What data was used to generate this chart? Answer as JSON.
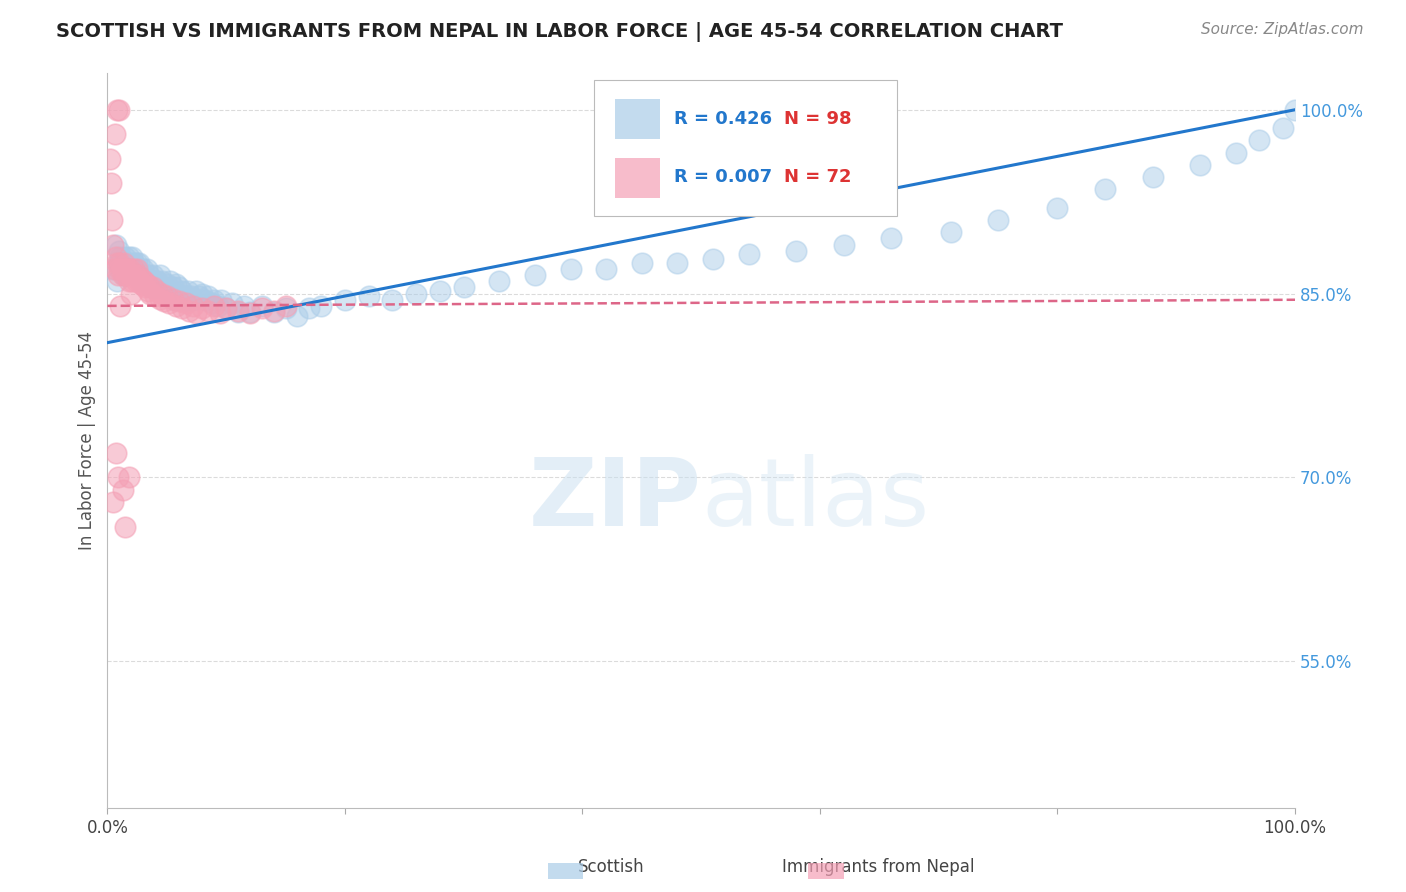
{
  "title": "SCOTTISH VS IMMIGRANTS FROM NEPAL IN LABOR FORCE | AGE 45-54 CORRELATION CHART",
  "source": "Source: ZipAtlas.com",
  "ylabel": "In Labor Force | Age 45-54",
  "xlim": [
    0.0,
    1.0
  ],
  "ylim": [
    0.43,
    1.03
  ],
  "legend_R_blue": "R = 0.426",
  "legend_N_blue": "N = 98",
  "legend_R_pink": "R = 0.007",
  "legend_N_pink": "N = 72",
  "blue_color": "#aacce8",
  "pink_color": "#f4a0b5",
  "blue_line_color": "#2277cc",
  "pink_line_color": "#dd6688",
  "background_color": "#ffffff",
  "grid_color": "#cccccc",
  "title_color": "#222222",
  "source_color": "#888888",
  "watermark_color": "#ddeeff",
  "blue_scatter_x": [
    0.005,
    0.007,
    0.008,
    0.01,
    0.01,
    0.011,
    0.012,
    0.013,
    0.014,
    0.015,
    0.016,
    0.017,
    0.018,
    0.019,
    0.02,
    0.021,
    0.022,
    0.023,
    0.025,
    0.026,
    0.027,
    0.028,
    0.03,
    0.031,
    0.032,
    0.033,
    0.035,
    0.036,
    0.037,
    0.038,
    0.04,
    0.041,
    0.042,
    0.044,
    0.045,
    0.046,
    0.048,
    0.05,
    0.052,
    0.053,
    0.055,
    0.057,
    0.058,
    0.06,
    0.062,
    0.063,
    0.065,
    0.067,
    0.068,
    0.07,
    0.072,
    0.075,
    0.077,
    0.08,
    0.082,
    0.085,
    0.088,
    0.09,
    0.093,
    0.096,
    0.1,
    0.105,
    0.11,
    0.115,
    0.12,
    0.13,
    0.14,
    0.15,
    0.16,
    0.17,
    0.18,
    0.2,
    0.22,
    0.24,
    0.26,
    0.28,
    0.3,
    0.33,
    0.36,
    0.39,
    0.42,
    0.45,
    0.48,
    0.51,
    0.54,
    0.58,
    0.62,
    0.66,
    0.71,
    0.75,
    0.8,
    0.84,
    0.88,
    0.92,
    0.95,
    0.97,
    0.99,
    1.0
  ],
  "blue_scatter_y": [
    0.87,
    0.89,
    0.86,
    0.885,
    0.875,
    0.88,
    0.87,
    0.875,
    0.865,
    0.88,
    0.875,
    0.87,
    0.88,
    0.875,
    0.87,
    0.88,
    0.875,
    0.87,
    0.875,
    0.87,
    0.875,
    0.86,
    0.87,
    0.865,
    0.86,
    0.87,
    0.865,
    0.86,
    0.855,
    0.865,
    0.86,
    0.855,
    0.86,
    0.865,
    0.855,
    0.86,
    0.855,
    0.858,
    0.852,
    0.86,
    0.855,
    0.845,
    0.858,
    0.855,
    0.848,
    0.852,
    0.848,
    0.845,
    0.852,
    0.848,
    0.845,
    0.852,
    0.848,
    0.85,
    0.845,
    0.848,
    0.842,
    0.845,
    0.84,
    0.845,
    0.838,
    0.842,
    0.835,
    0.84,
    0.835,
    0.84,
    0.835,
    0.838,
    0.832,
    0.838,
    0.84,
    0.845,
    0.848,
    0.845,
    0.85,
    0.852,
    0.855,
    0.86,
    0.865,
    0.87,
    0.87,
    0.875,
    0.875,
    0.878,
    0.882,
    0.885,
    0.89,
    0.895,
    0.9,
    0.91,
    0.92,
    0.935,
    0.945,
    0.955,
    0.965,
    0.975,
    0.985,
    1.0
  ],
  "pink_scatter_x": [
    0.002,
    0.003,
    0.004,
    0.005,
    0.006,
    0.007,
    0.008,
    0.009,
    0.01,
    0.011,
    0.012,
    0.013,
    0.014,
    0.015,
    0.016,
    0.017,
    0.018,
    0.019,
    0.02,
    0.021,
    0.022,
    0.023,
    0.024,
    0.025,
    0.026,
    0.027,
    0.028,
    0.029,
    0.03,
    0.031,
    0.032,
    0.033,
    0.034,
    0.035,
    0.036,
    0.038,
    0.04,
    0.042,
    0.044,
    0.046,
    0.048,
    0.05,
    0.052,
    0.055,
    0.058,
    0.06,
    0.063,
    0.066,
    0.069,
    0.072,
    0.075,
    0.08,
    0.085,
    0.09,
    0.095,
    0.1,
    0.11,
    0.12,
    0.13,
    0.14,
    0.15,
    0.01,
    0.008,
    0.006,
    0.005,
    0.007,
    0.009,
    0.011,
    0.013,
    0.015,
    0.018,
    0.02
  ],
  "pink_scatter_y": [
    0.96,
    0.94,
    0.91,
    0.89,
    0.87,
    0.88,
    0.875,
    0.865,
    0.87,
    0.875,
    0.87,
    0.865,
    0.875,
    0.87,
    0.865,
    0.87,
    0.86,
    0.87,
    0.865,
    0.86,
    0.87,
    0.865,
    0.86,
    0.87,
    0.865,
    0.86,
    0.858,
    0.862,
    0.857,
    0.86,
    0.855,
    0.858,
    0.852,
    0.856,
    0.85,
    0.855,
    0.848,
    0.852,
    0.846,
    0.85,
    0.844,
    0.848,
    0.842,
    0.846,
    0.84,
    0.844,
    0.838,
    0.842,
    0.836,
    0.84,
    0.834,
    0.838,
    0.836,
    0.84,
    0.834,
    0.838,
    0.836,
    0.834,
    0.838,
    0.836,
    0.84,
    1.0,
    1.0,
    0.98,
    0.68,
    0.72,
    0.7,
    0.84,
    0.69,
    0.66,
    0.7,
    0.85
  ],
  "blue_line_y_start": 0.81,
  "blue_line_y_end": 1.0,
  "pink_line_y_start": 0.84,
  "pink_line_y_end": 0.845
}
